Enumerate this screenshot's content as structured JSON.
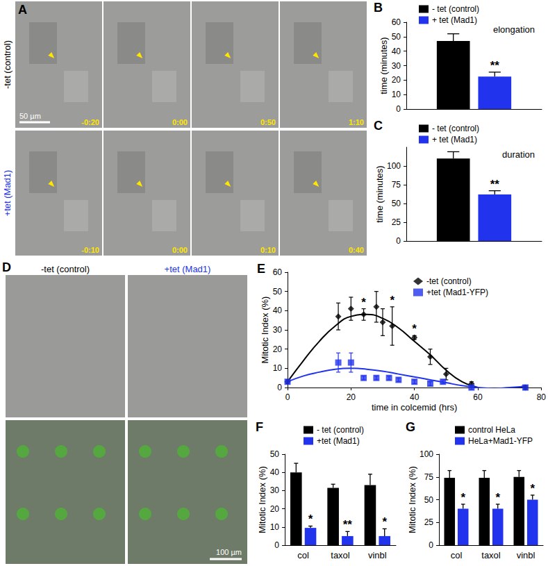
{
  "images": {
    "A": {
      "panel_label": "A",
      "rows": [
        {
          "label": "-tet (control)",
          "color": "#000000",
          "times": [
            "-0:20",
            "0:00",
            "0:50",
            "1:10"
          ]
        },
        {
          "label": "+tet (Mad1)",
          "color": "#2233ee",
          "times": [
            "-0:10",
            "0:00",
            "0:10",
            "0:40"
          ]
        }
      ],
      "scale_bar": "50 µm"
    },
    "D": {
      "panel_label": "D",
      "columns": [
        {
          "label": "-tet (control)",
          "color": "#000000"
        },
        {
          "label": "+tet (Mad1)",
          "color": "#2233ee"
        }
      ],
      "scale_bar": "100 µm"
    }
  },
  "chart_data": [
    {
      "panel_label": "B",
      "type": "bar",
      "title": "elongation",
      "y_label": "time (minutes)",
      "categories": [
        null
      ],
      "series": [
        {
          "name": "- tet (control)",
          "color": "#000000",
          "values": [
            47
          ],
          "errors": [
            5
          ]
        },
        {
          "name": "+ tet (Mad1)",
          "color": "#2233ee",
          "values": [
            22.5
          ],
          "errors": [
            3
          ],
          "annotations": [
            "**"
          ]
        }
      ],
      "ylim": [
        0,
        60
      ],
      "yticks": [
        0,
        10,
        20,
        30,
        40,
        50,
        60
      ],
      "grid": false,
      "legend": "top",
      "tick_labels": "y"
    },
    {
      "panel_label": "C",
      "type": "bar",
      "title": "duration",
      "y_label": "time (minutes)",
      "categories": [
        null
      ],
      "series": [
        {
          "name": "- tet (control)",
          "color": "#000000",
          "values": [
            110
          ],
          "errors": [
            9
          ]
        },
        {
          "name": "+ tet (Mad1)",
          "color": "#2233ee",
          "values": [
            62
          ],
          "errors": [
            5
          ],
          "annotations": [
            "**"
          ]
        }
      ],
      "ylim": [
        0,
        125
      ],
      "yticks": [
        0,
        25,
        50,
        75,
        100
      ],
      "grid": false,
      "legend": "top",
      "tick_labels": "y"
    },
    {
      "panel_label": "E",
      "type": "scatter",
      "x_label": "time in colcemid (hrs)",
      "y_label": "Mitotic Index (%)",
      "series": [
        {
          "name": "-tet (control)",
          "color": "#000000",
          "marker": "diamond",
          "x": [
            0,
            16,
            20,
            24,
            28,
            30,
            33,
            40,
            45,
            50,
            58,
            75
          ],
          "values": [
            3,
            37,
            41,
            38,
            42,
            34,
            32,
            26,
            16,
            7,
            2,
            0
          ],
          "errors": [
            1,
            7,
            6,
            3,
            8,
            7,
            10,
            1,
            4,
            3,
            1,
            1
          ],
          "annotations": [
            null,
            null,
            null,
            "*",
            null,
            null,
            "*",
            "*",
            null,
            null,
            null,
            null
          ],
          "curve": {
            "x": [
              0,
              5,
              10,
              15,
              20,
              25,
              30,
              35,
              40,
              45,
              50,
              55,
              60,
              65,
              70,
              75
            ],
            "values": [
              3,
              14,
              24,
              32,
              37,
              38,
              36,
              31,
              24,
              17,
              9,
              3,
              0,
              -2,
              -1,
              1
            ]
          }
        },
        {
          "name": "+tet (Mad1-YFP)",
          "color": "#2233ee",
          "marker": "square",
          "x": [
            0,
            16,
            20,
            24,
            28,
            32,
            35,
            40,
            45,
            49,
            58,
            75
          ],
          "values": [
            3,
            13,
            13,
            5,
            5,
            5,
            4,
            3,
            2,
            3,
            0,
            0
          ],
          "errors": [
            1,
            5,
            5,
            1,
            1,
            1,
            1,
            1,
            1,
            1,
            1,
            1
          ],
          "curve": {
            "x": [
              0,
              5,
              10,
              15,
              20,
              25,
              30,
              35,
              40,
              45,
              50,
              55,
              60,
              65,
              70,
              75
            ],
            "values": [
              3,
              6,
              8,
              9.5,
              10,
              9.5,
              8.5,
              7,
              5.5,
              4,
              2.5,
              1,
              0,
              -0.5,
              0,
              0.5
            ]
          }
        }
      ],
      "xlim": [
        0,
        80
      ],
      "xticks": [
        0,
        20,
        40,
        60,
        80
      ],
      "ylim": [
        0,
        60
      ],
      "yticks": [
        0,
        10,
        20,
        30,
        40,
        50,
        60
      ],
      "grid": false,
      "legend": "top right"
    },
    {
      "panel_label": "F",
      "type": "bar",
      "y_label": "Mitotic Index (%)",
      "categories": [
        "col",
        "taxol",
        "vinbl"
      ],
      "series": [
        {
          "name": "- tet (control)",
          "color": "#000000",
          "values": [
            40,
            31.5,
            33
          ],
          "errors": [
            5,
            2,
            6
          ]
        },
        {
          "name": "+tet (Mad1)",
          "color": "#2233ee",
          "values": [
            9.5,
            5,
            5
          ],
          "errors": [
            1,
            2.5,
            4
          ],
          "annotations": [
            "*",
            "**",
            "*"
          ]
        }
      ],
      "ylim": [
        0,
        50
      ],
      "yticks": [
        0,
        10,
        20,
        30,
        40,
        50
      ],
      "grid": false,
      "legend": "top right"
    },
    {
      "panel_label": "G",
      "type": "bar",
      "y_label": "Mitotic Index (%)",
      "categories": [
        "col",
        "taxol",
        "vinbl"
      ],
      "series": [
        {
          "name": "control HeLa",
          "color": "#000000",
          "values": [
            74,
            74,
            75
          ],
          "errors": [
            8,
            8,
            7
          ]
        },
        {
          "name": "HeLa+Mad1-YFP",
          "color": "#2233ee",
          "values": [
            40,
            40,
            50
          ],
          "errors": [
            5,
            5,
            5
          ],
          "annotations": [
            "*",
            "*",
            "*"
          ]
        }
      ],
      "ylim": [
        0,
        100
      ],
      "yticks": [
        0,
        25,
        50,
        75,
        100
      ],
      "grid": false,
      "legend": "top right"
    }
  ]
}
